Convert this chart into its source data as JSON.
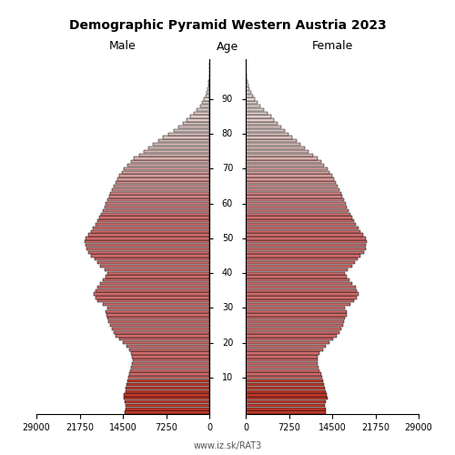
{
  "title": "Demographic Pyramid Western Austria 2023",
  "subtitle_left": "Male",
  "subtitle_right": "Female",
  "age_label": "Age",
  "footer": "www.iz.sk/RAT3",
  "xlim": 29000,
  "bar_edgecolor": "#000000",
  "bar_linewidth": 0.35,
  "ages": [
    0,
    1,
    2,
    3,
    4,
    5,
    6,
    7,
    8,
    9,
    10,
    11,
    12,
    13,
    14,
    15,
    16,
    17,
    18,
    19,
    20,
    21,
    22,
    23,
    24,
    25,
    26,
    27,
    28,
    29,
    30,
    31,
    32,
    33,
    34,
    35,
    36,
    37,
    38,
    39,
    40,
    41,
    42,
    43,
    44,
    45,
    46,
    47,
    48,
    49,
    50,
    51,
    52,
    53,
    54,
    55,
    56,
    57,
    58,
    59,
    60,
    61,
    62,
    63,
    64,
    65,
    66,
    67,
    68,
    69,
    70,
    71,
    72,
    73,
    74,
    75,
    76,
    77,
    78,
    79,
    80,
    81,
    82,
    83,
    84,
    85,
    86,
    87,
    88,
    89,
    90,
    91,
    92,
    93,
    94,
    95,
    96,
    97,
    98,
    99,
    100
  ],
  "male": [
    14200,
    14100,
    14000,
    14200,
    14400,
    14300,
    14100,
    14000,
    13900,
    13700,
    13600,
    13500,
    13300,
    13100,
    12900,
    12800,
    12900,
    13100,
    13500,
    13900,
    14500,
    15100,
    15700,
    16100,
    16400,
    16700,
    16900,
    17100,
    17300,
    17400,
    17100,
    17900,
    18700,
    19100,
    19400,
    19100,
    18800,
    18300,
    17900,
    17400,
    17100,
    17600,
    18300,
    18800,
    19300,
    19800,
    20300,
    20600,
    20800,
    20900,
    20700,
    20300,
    19900,
    19500,
    19100,
    18800,
    18500,
    18200,
    17900,
    17600,
    17400,
    17100,
    16800,
    16600,
    16300,
    16000,
    15700,
    15400,
    15100,
    14700,
    14300,
    13700,
    13100,
    12600,
    11800,
    11000,
    10200,
    9400,
    8600,
    7800,
    6800,
    6000,
    5200,
    4500,
    3800,
    3200,
    2600,
    2100,
    1600,
    1200,
    850,
    580,
    400,
    270,
    180,
    110,
    65,
    38,
    20,
    10,
    4
  ],
  "female": [
    13500,
    13400,
    13300,
    13500,
    13700,
    13600,
    13400,
    13300,
    13200,
    13000,
    12800,
    12600,
    12400,
    12200,
    12000,
    12000,
    12100,
    12400,
    12900,
    13400,
    14100,
    14700,
    15300,
    15700,
    16000,
    16300,
    16500,
    16700,
    16900,
    17000,
    16700,
    17500,
    18200,
    18600,
    18900,
    18600,
    18400,
    17900,
    17400,
    16900,
    16600,
    17100,
    17800,
    18300,
    18800,
    19300,
    19800,
    20100,
    20200,
    20300,
    20100,
    19700,
    19300,
    18900,
    18500,
    18200,
    17900,
    17600,
    17300,
    17000,
    16800,
    16500,
    16200,
    16000,
    15700,
    15400,
    15100,
    14800,
    14500,
    14100,
    13700,
    13200,
    12600,
    12000,
    11300,
    10600,
    9900,
    9200,
    8500,
    7800,
    7200,
    6600,
    6000,
    5400,
    4800,
    4200,
    3600,
    3000,
    2500,
    2000,
    1600,
    1200,
    900,
    650,
    460,
    310,
    200,
    120,
    65,
    32,
    14
  ]
}
